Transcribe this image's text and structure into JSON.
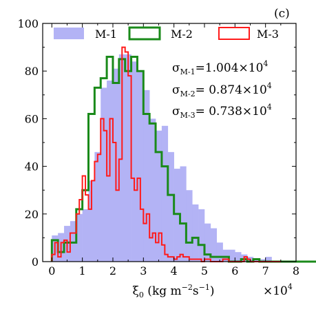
{
  "panel_label": "(c)",
  "chart_data": {
    "type": "histogram",
    "xlabel": "ξ0 (kg m−2s−1)",
    "ylabel": "",
    "x_multiplier": "×10^4",
    "xlim": [
      -0.3,
      8.0
    ],
    "ylim": [
      0,
      100
    ],
    "xticks": [
      0,
      1,
      2,
      3,
      4,
      5,
      6,
      7,
      8
    ],
    "yticks": [
      0,
      20,
      40,
      60,
      80,
      100
    ],
    "legend_position": "top",
    "series": [
      {
        "name": "M-1",
        "style": "filled",
        "color": "#b3b3f5",
        "bin_start": 0.0,
        "bin_width": 0.2,
        "values": [
          11,
          12,
          15,
          17,
          20,
          22,
          34,
          46,
          73,
          76,
          81,
          87,
          87,
          84,
          80,
          72,
          60,
          55,
          57,
          46,
          39,
          40,
          30,
          24,
          22,
          16,
          14,
          8,
          5,
          5,
          4,
          3,
          2,
          1,
          1,
          2,
          0,
          0,
          0,
          0,
          0,
          0,
          0,
          0,
          0,
          0,
          0
        ]
      },
      {
        "name": "M-2",
        "style": "step",
        "color": "#1a8a1a",
        "bin_start": 0.0,
        "bin_width": 0.2,
        "values": [
          9,
          4,
          8,
          8,
          22,
          30,
          62,
          73,
          77,
          86,
          75,
          85,
          80,
          86,
          80,
          62,
          58,
          46,
          40,
          28,
          20,
          16,
          8,
          10,
          7,
          3,
          2,
          2,
          2,
          0,
          0,
          1,
          0,
          1,
          0,
          0,
          0,
          0,
          0,
          0,
          0,
          0,
          0,
          0,
          0,
          0,
          0
        ]
      },
      {
        "name": "M-3",
        "style": "step",
        "color": "#ff1a1a",
        "bin_start": 0.0,
        "bin_width": 0.1,
        "values": [
          3,
          8,
          2,
          8,
          9,
          4,
          12,
          12,
          20,
          26,
          36,
          28,
          22,
          34,
          42,
          45,
          60,
          55,
          36,
          60,
          50,
          30,
          43,
          90,
          88,
          78,
          35,
          30,
          35,
          22,
          16,
          20,
          10,
          12,
          8,
          12,
          7,
          3,
          2,
          2,
          1,
          2,
          3,
          2,
          2,
          1,
          1,
          1,
          1,
          0,
          1,
          1,
          0,
          0,
          0,
          0,
          1,
          1,
          0,
          0,
          0,
          0,
          0,
          2,
          1,
          0,
          0,
          0,
          0,
          0,
          0,
          0,
          0,
          0,
          0
        ]
      }
    ],
    "annotations": [
      {
        "label": "σM-1",
        "value": "=1.004×10^4"
      },
      {
        "label": "σM-2",
        "value": "= 0.874×10^4"
      },
      {
        "label": "σM-3",
        "value": "= 0.738×10^4"
      }
    ]
  }
}
